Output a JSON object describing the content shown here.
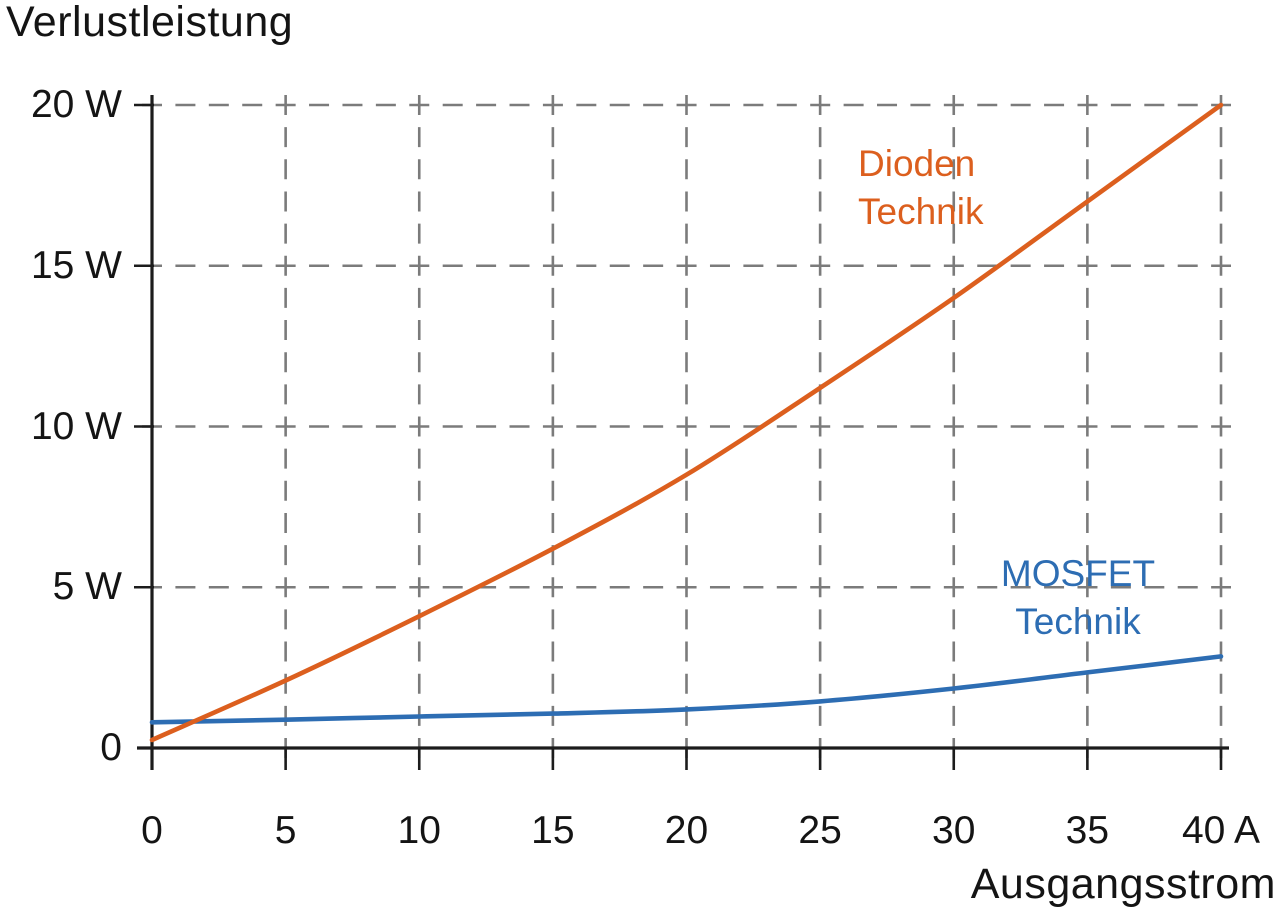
{
  "chart_data": {
    "type": "line",
    "title": "Verlustleistung",
    "xlabel": "Ausgangsstrom",
    "x_unit": "A",
    "y_unit": "W",
    "xlim": [
      0,
      40
    ],
    "ylim": [
      0,
      20
    ],
    "x_ticks": [
      0,
      5,
      10,
      15,
      20,
      25,
      30,
      35,
      40
    ],
    "x_tick_labels": [
      "0",
      "5",
      "10",
      "15",
      "20",
      "25",
      "30",
      "35",
      "40 A"
    ],
    "y_ticks": [
      0,
      5,
      10,
      15,
      20
    ],
    "y_tick_labels": [
      "0",
      "5 W",
      "10 W",
      "15 W",
      "20 W"
    ],
    "grid": "dashed",
    "legend_position": "inline-annotations",
    "series": [
      {
        "name": "Dioden Technik",
        "label_lines": [
          "Dioden",
          "Technik"
        ],
        "color": "#DC5F1E",
        "x": [
          0,
          5,
          10,
          15,
          20,
          25,
          30,
          35,
          40
        ],
        "values": [
          0.25,
          2.1,
          4.1,
          6.2,
          8.5,
          11.2,
          14.0,
          17.0,
          20.0
        ]
      },
      {
        "name": "MOSFET Technik",
        "label_lines": [
          "MOSFET",
          "Technik"
        ],
        "color": "#2D6DB3",
        "x": [
          0,
          5,
          10,
          15,
          20,
          25,
          30,
          35,
          40
        ],
        "values": [
          0.8,
          0.88,
          0.98,
          1.07,
          1.2,
          1.45,
          1.85,
          2.35,
          2.85
        ]
      }
    ],
    "colors": {
      "axis": "#1c1c1c",
      "grid": "#7b7b7b",
      "text": "#141414",
      "background": "#ffffff"
    }
  }
}
